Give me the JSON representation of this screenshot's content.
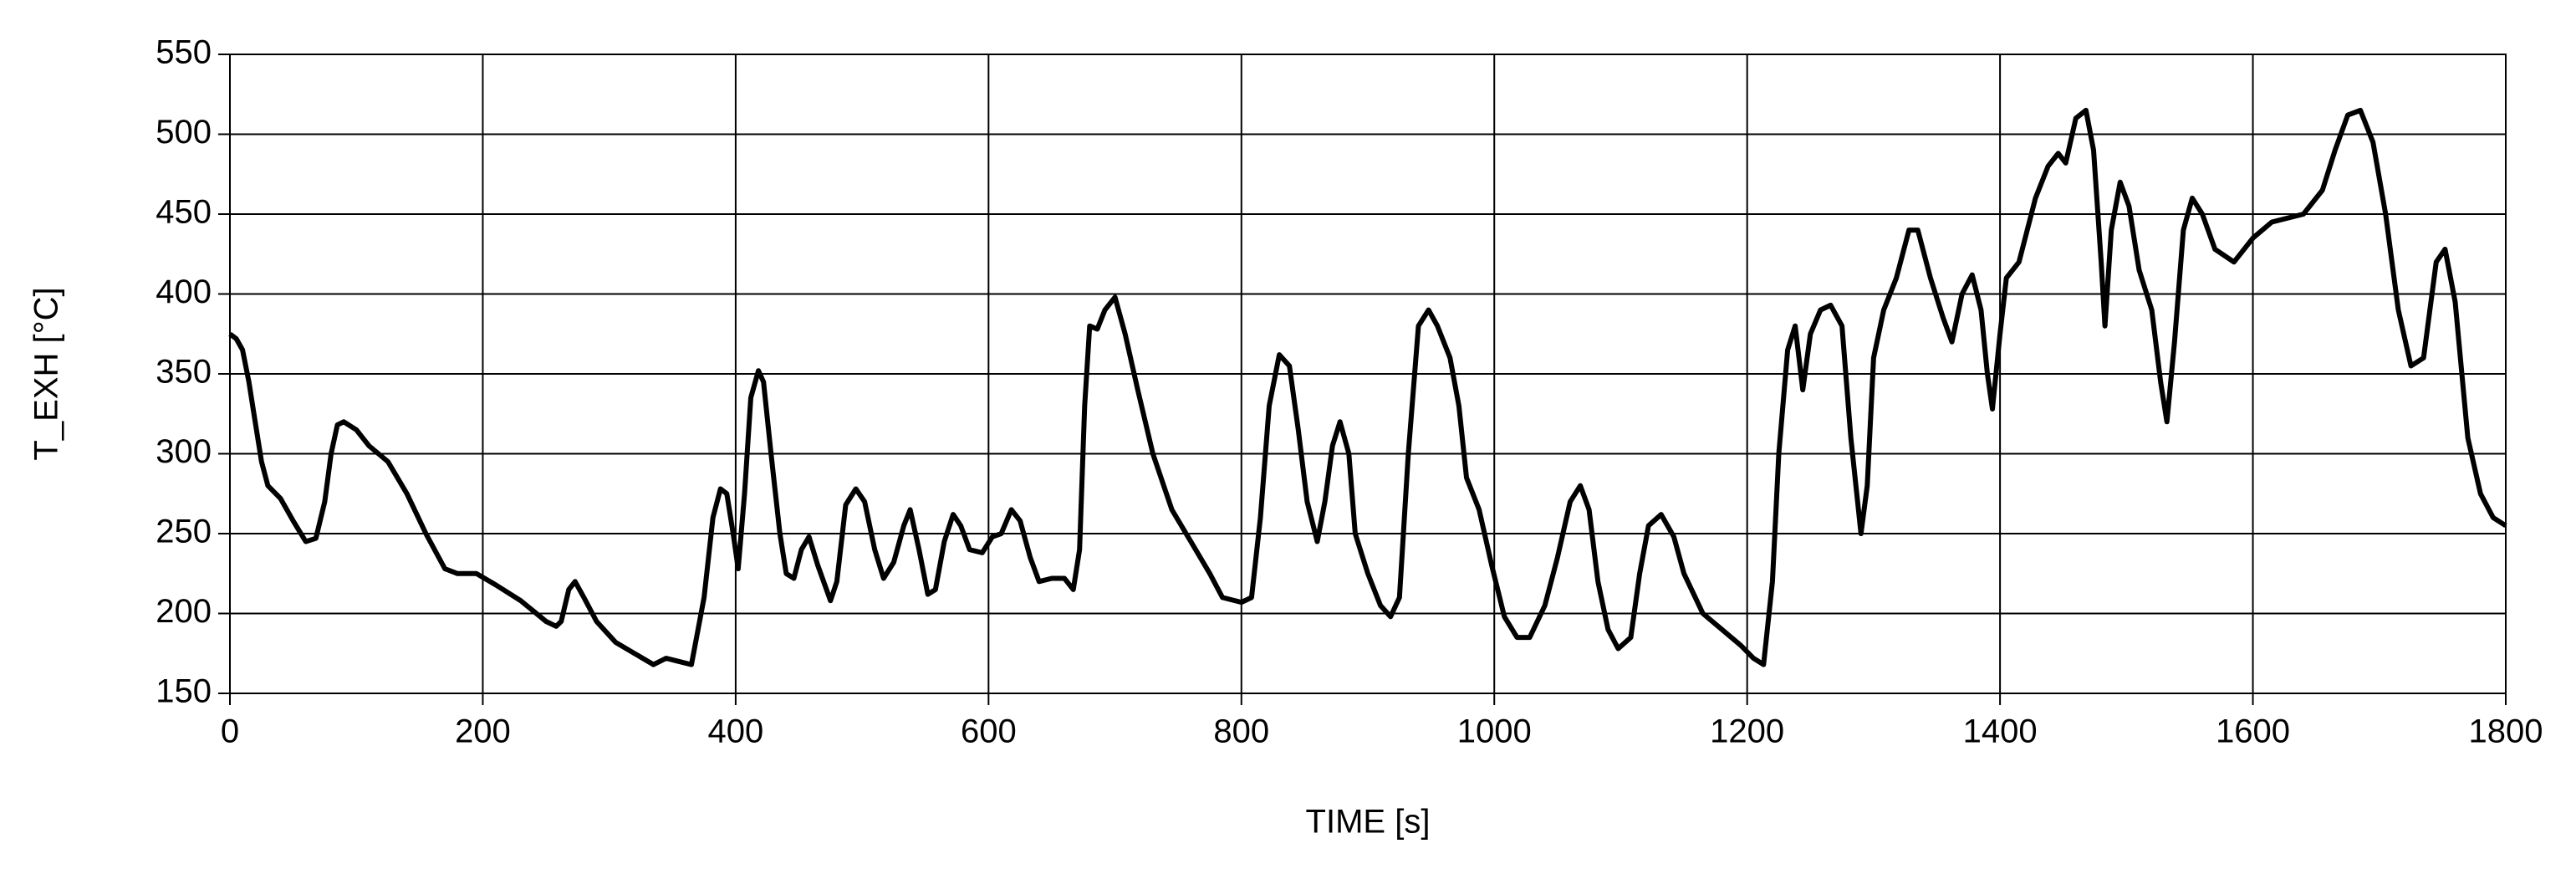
{
  "chart_data": {
    "type": "line",
    "x_label": "TIME [s]",
    "y_label": "T_EXH [°C]",
    "x": [
      0,
      5,
      10,
      15,
      20,
      25,
      30,
      40,
      50,
      60,
      68,
      75,
      80,
      85,
      90,
      100,
      110,
      125,
      140,
      155,
      170,
      180,
      195,
      210,
      230,
      250,
      258,
      262,
      268,
      273,
      280,
      290,
      305,
      320,
      335,
      345,
      355,
      365,
      375,
      382,
      388,
      393,
      398,
      402,
      407,
      412,
      418,
      422,
      428,
      435,
      440,
      446,
      452,
      458,
      465,
      475,
      480,
      487,
      495,
      502,
      510,
      517,
      525,
      533,
      538,
      545,
      552,
      558,
      565,
      572,
      578,
      585,
      595,
      603,
      610,
      618,
      625,
      633,
      640,
      650,
      660,
      667,
      672,
      676,
      680,
      686,
      692,
      700,
      708,
      718,
      730,
      745,
      760,
      775,
      785,
      800,
      808,
      815,
      822,
      830,
      838,
      845,
      852,
      860,
      866,
      872,
      878,
      885,
      890,
      900,
      910,
      918,
      925,
      932,
      940,
      948,
      955,
      965,
      972,
      978,
      988,
      998,
      1008,
      1018,
      1028,
      1040,
      1050,
      1060,
      1068,
      1075,
      1082,
      1090,
      1098,
      1108,
      1115,
      1122,
      1132,
      1142,
      1150,
      1165,
      1180,
      1195,
      1205,
      1213,
      1220,
      1225,
      1232,
      1238,
      1244,
      1250,
      1258,
      1266,
      1275,
      1282,
      1290,
      1295,
      1300,
      1308,
      1318,
      1328,
      1335,
      1345,
      1355,
      1362,
      1370,
      1378,
      1385,
      1390,
      1394,
      1400,
      1405,
      1415,
      1428,
      1438,
      1446,
      1452,
      1460,
      1468,
      1474,
      1480,
      1483,
      1488,
      1495,
      1502,
      1510,
      1520,
      1527,
      1532,
      1538,
      1545,
      1552,
      1560,
      1570,
      1585,
      1600,
      1615,
      1640,
      1655,
      1665,
      1675,
      1685,
      1695,
      1705,
      1715,
      1725,
      1735,
      1745,
      1752,
      1760,
      1770,
      1780,
      1790,
      1800
    ],
    "values": [
      375,
      372,
      365,
      345,
      320,
      295,
      280,
      272,
      258,
      245,
      247,
      270,
      300,
      318,
      320,
      315,
      305,
      295,
      275,
      250,
      228,
      225,
      225,
      218,
      208,
      195,
      192,
      195,
      215,
      220,
      210,
      195,
      182,
      175,
      168,
      172,
      170,
      168,
      210,
      260,
      278,
      275,
      250,
      228,
      275,
      335,
      352,
      345,
      300,
      250,
      225,
      222,
      240,
      248,
      230,
      208,
      220,
      268,
      278,
      270,
      240,
      222,
      232,
      255,
      265,
      240,
      212,
      215,
      245,
      262,
      255,
      240,
      238,
      248,
      250,
      265,
      258,
      235,
      220,
      222,
      222,
      215,
      240,
      330,
      380,
      378,
      390,
      398,
      375,
      340,
      300,
      265,
      245,
      225,
      210,
      207,
      210,
      260,
      330,
      362,
      355,
      315,
      270,
      245,
      270,
      305,
      320,
      300,
      250,
      225,
      205,
      198,
      210,
      300,
      380,
      390,
      380,
      360,
      330,
      285,
      265,
      230,
      198,
      185,
      185,
      205,
      235,
      270,
      280,
      265,
      220,
      190,
      178,
      185,
      225,
      255,
      262,
      248,
      225,
      200,
      190,
      180,
      172,
      168,
      220,
      300,
      365,
      380,
      340,
      375,
      390,
      393,
      380,
      310,
      250,
      280,
      360,
      390,
      410,
      440,
      440,
      410,
      385,
      370,
      400,
      412,
      390,
      350,
      328,
      375,
      410,
      420,
      460,
      480,
      488,
      482,
      510,
      515,
      490,
      420,
      380,
      440,
      470,
      455,
      415,
      390,
      345,
      320,
      370,
      440,
      460,
      450,
      428,
      420,
      435,
      445,
      450,
      465,
      490,
      512,
      515,
      495,
      450,
      390,
      355,
      360,
      420,
      428,
      395,
      310,
      275,
      260,
      255
    ],
    "color": "#000000",
    "xlim": [
      0,
      1800
    ],
    "xticks": [
      0,
      200,
      400,
      600,
      800,
      1000,
      1200,
      1400,
      1600,
      1800
    ],
    "ylim": [
      150,
      550
    ],
    "yticks": [
      150,
      200,
      250,
      300,
      350,
      400,
      450,
      500,
      550
    ],
    "grid": true
  }
}
